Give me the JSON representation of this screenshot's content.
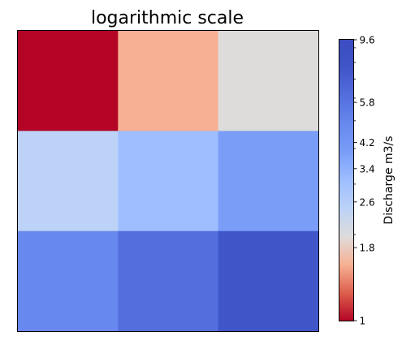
{
  "chart_data": {
    "type": "heatmap",
    "title": "logarithmic scale",
    "xlabel": "",
    "ylabel": "",
    "grid": false,
    "colormap": "coolwarm_r",
    "rows": 3,
    "cols": 3,
    "values": [
      [
        1.0,
        2.0,
        3.0
      ],
      [
        4.0,
        5.0,
        6.0
      ],
      [
        7.0,
        8.0,
        9.6
      ]
    ],
    "colors": [
      [
        "#b40426",
        "#f7b093",
        "#dedcdb"
      ],
      [
        "#bcd2f7",
        "#9ebeff",
        "#7a9df8"
      ],
      [
        "#6788ee",
        "#536edd",
        "#4055c8"
      ]
    ],
    "colorbar": {
      "label": "Discharge m3/s",
      "scale": "log",
      "range": [
        1,
        9.6
      ],
      "ticks": [
        1,
        1.8,
        2.6,
        3.4,
        4.2,
        5.8,
        9.6
      ],
      "tick_labels": [
        "1",
        "1.8",
        "2.6",
        "3.4",
        "4.2",
        "5.8",
        "9.6"
      ],
      "minor_ticks": [
        2,
        3,
        4,
        5,
        6,
        7,
        8,
        9
      ],
      "colormap_stops": [
        "#b40426",
        "#dd5f4b",
        "#f7b093",
        "#dedcdb",
        "#bcd2f7",
        "#9ebeff",
        "#7a9df8",
        "#6788ee",
        "#536edd",
        "#4055c8",
        "#3b4cc0"
      ]
    }
  }
}
